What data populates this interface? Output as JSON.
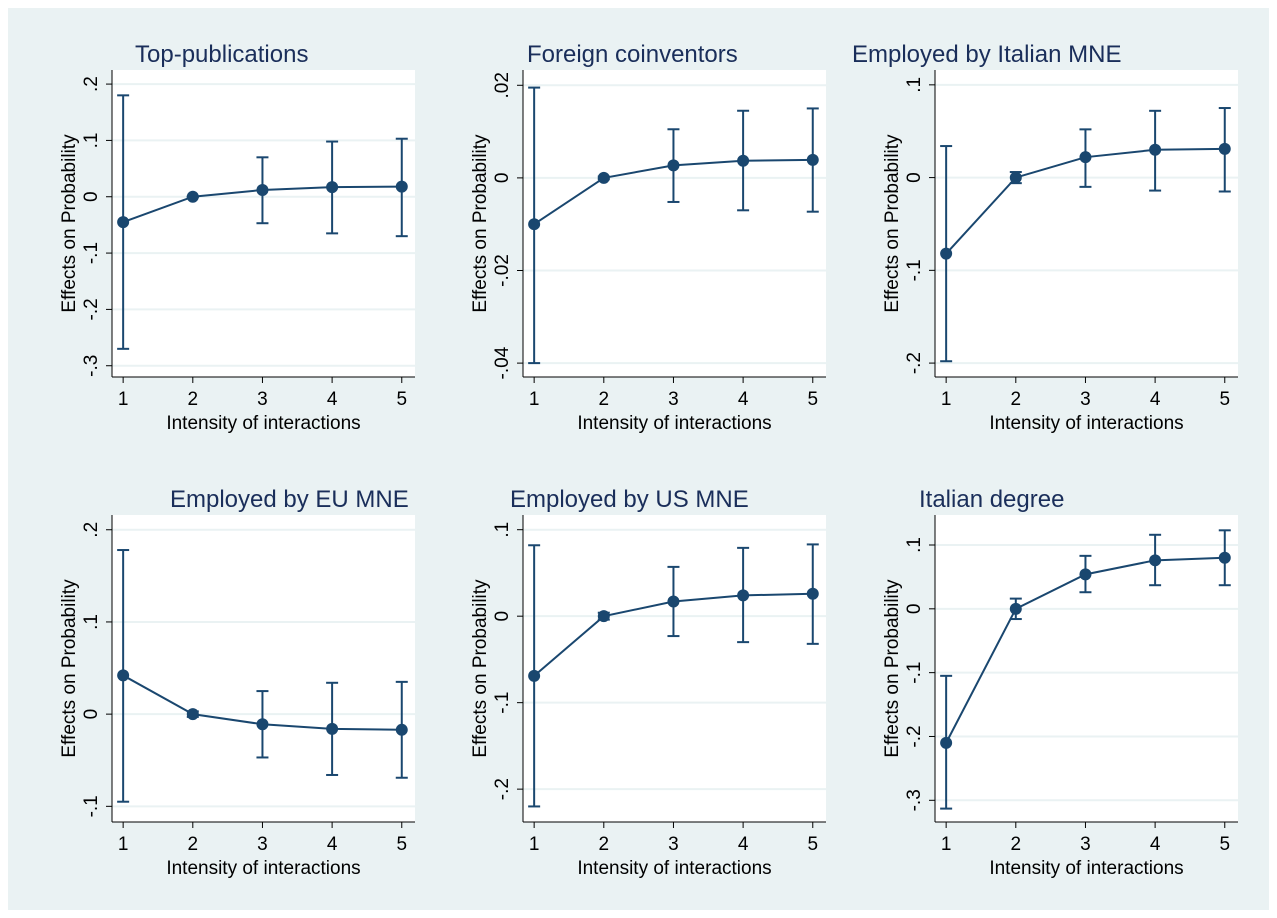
{
  "chart_data": [
    {
      "type": "line",
      "title": "Top-publications",
      "y_label": "Effects on Probability",
      "x_label": "Intensity of interactions",
      "color": "#1a476f",
      "x": [
        1,
        2,
        3,
        4,
        5
      ],
      "values": [
        -0.045,
        0,
        0.012,
        0.017,
        0.018
      ],
      "lower": [
        -0.27,
        0,
        -0.047,
        -0.065,
        -0.07
      ],
      "upper": [
        0.18,
        0,
        0.07,
        0.098,
        0.103
      ],
      "xlim": [
        0.84,
        5.19
      ],
      "xticks": [
        1,
        2,
        3,
        4,
        5
      ],
      "ylim": [
        -0.32,
        0.225
      ],
      "yticks": [
        {
          "value": -0.3,
          "label": "-.3"
        },
        {
          "value": -0.2,
          "label": "-.2"
        },
        {
          "value": -0.1,
          "label": "-.1"
        },
        0,
        {
          "value": 0.1,
          "label": ".1"
        },
        {
          "value": 0.2,
          "label": ".2"
        }
      ],
      "grid": true
    },
    {
      "type": "line",
      "title": "Foreign coinventors",
      "y_label": "Effects on Probability",
      "x_label": "Intensity of interactions",
      "color": "#1a476f",
      "x": [
        1,
        2,
        3,
        4,
        5
      ],
      "values": [
        -0.01,
        0,
        0.0027,
        0.0037,
        0.0039
      ],
      "lower": [
        -0.04,
        -0.0003,
        -0.0052,
        -0.007,
        -0.0073
      ],
      "upper": [
        0.0195,
        0.0003,
        0.0105,
        0.0145,
        0.015
      ],
      "xlim": [
        0.84,
        5.19
      ],
      "xticks": [
        1,
        2,
        3,
        4,
        5
      ],
      "ylim": [
        -0.043,
        0.0233
      ],
      "yticks": [
        {
          "value": -0.04,
          "label": "-.04"
        },
        {
          "value": -0.02,
          "label": "-.02"
        },
        0,
        {
          "value": 0.02,
          "label": ".02"
        }
      ],
      "grid": true
    },
    {
      "type": "line",
      "title": "Employed by Italian MNE",
      "y_label": "Effects on Probability",
      "x_label": "Intensity of interactions",
      "color": "#1a476f",
      "x": [
        1,
        2,
        3,
        4,
        5
      ],
      "values": [
        -0.082,
        0,
        0.022,
        0.03,
        0.031
      ],
      "lower": [
        -0.198,
        -0.006,
        -0.01,
        -0.014,
        -0.015
      ],
      "upper": [
        0.034,
        0.006,
        0.052,
        0.072,
        0.075
      ],
      "xlim": [
        0.84,
        5.19
      ],
      "xticks": [
        1,
        2,
        3,
        4,
        5
      ],
      "ylim": [
        -0.215,
        0.116
      ],
      "yticks": [
        {
          "value": -0.2,
          "label": "-.2"
        },
        {
          "value": -0.1,
          "label": "-.1"
        },
        0,
        {
          "value": 0.1,
          "label": ".1"
        }
      ],
      "grid": true
    },
    {
      "type": "line",
      "title": "Employed by EU MNE",
      "y_label": "Effects on Probability",
      "x_label": "Intensity of interactions",
      "color": "#1a476f",
      "x": [
        1,
        2,
        3,
        4,
        5
      ],
      "values": [
        0.042,
        0,
        -0.011,
        -0.016,
        -0.017
      ],
      "lower": [
        -0.095,
        -0.003,
        -0.047,
        -0.066,
        -0.069
      ],
      "upper": [
        0.178,
        0.003,
        0.025,
        0.034,
        0.035
      ],
      "xlim": [
        0.84,
        5.19
      ],
      "xticks": [
        1,
        2,
        3,
        4,
        5
      ],
      "ylim": [
        -0.117,
        0.216
      ],
      "yticks": [
        {
          "value": -0.1,
          "label": "-.1"
        },
        0,
        {
          "value": 0.1,
          "label": ".1"
        },
        {
          "value": 0.2,
          "label": ".2"
        }
      ],
      "grid": true
    },
    {
      "type": "line",
      "title": "Employed by US MNE",
      "y_label": "Effects on Probability",
      "x_label": "Intensity of interactions",
      "color": "#1a476f",
      "x": [
        1,
        2,
        3,
        4,
        5
      ],
      "values": [
        -0.069,
        0,
        0.017,
        0.024,
        0.026
      ],
      "lower": [
        -0.22,
        -0.004,
        -0.023,
        -0.03,
        -0.032
      ],
      "upper": [
        0.082,
        0.004,
        0.057,
        0.079,
        0.083
      ],
      "xlim": [
        0.84,
        5.19
      ],
      "xticks": [
        1,
        2,
        3,
        4,
        5
      ],
      "ylim": [
        -0.238,
        0.117
      ],
      "yticks": [
        {
          "value": -0.2,
          "label": "-.2"
        },
        {
          "value": -0.1,
          "label": "-.1"
        },
        0,
        {
          "value": 0.1,
          "label": ".1"
        }
      ],
      "grid": true
    },
    {
      "type": "line",
      "title": "Italian degree",
      "y_label": "Effects on Probability",
      "x_label": "Intensity of interactions",
      "color": "#1a476f",
      "x": [
        1,
        2,
        3,
        4,
        5
      ],
      "values": [
        -0.21,
        0,
        0.054,
        0.076,
        0.08
      ],
      "lower": [
        -0.313,
        -0.016,
        0.026,
        0.037,
        0.037
      ],
      "upper": [
        -0.105,
        0.016,
        0.083,
        0.116,
        0.123
      ],
      "xlim": [
        0.84,
        5.19
      ],
      "xticks": [
        1,
        2,
        3,
        4,
        5
      ],
      "ylim": [
        -0.334,
        0.147
      ],
      "yticks": [
        {
          "value": -0.3,
          "label": "-.3"
        },
        {
          "value": -0.2,
          "label": "-.2"
        },
        {
          "value": -0.1,
          "label": "-.1"
        },
        0,
        {
          "value": 0.1,
          "label": ".1"
        }
      ],
      "grid": true
    }
  ]
}
